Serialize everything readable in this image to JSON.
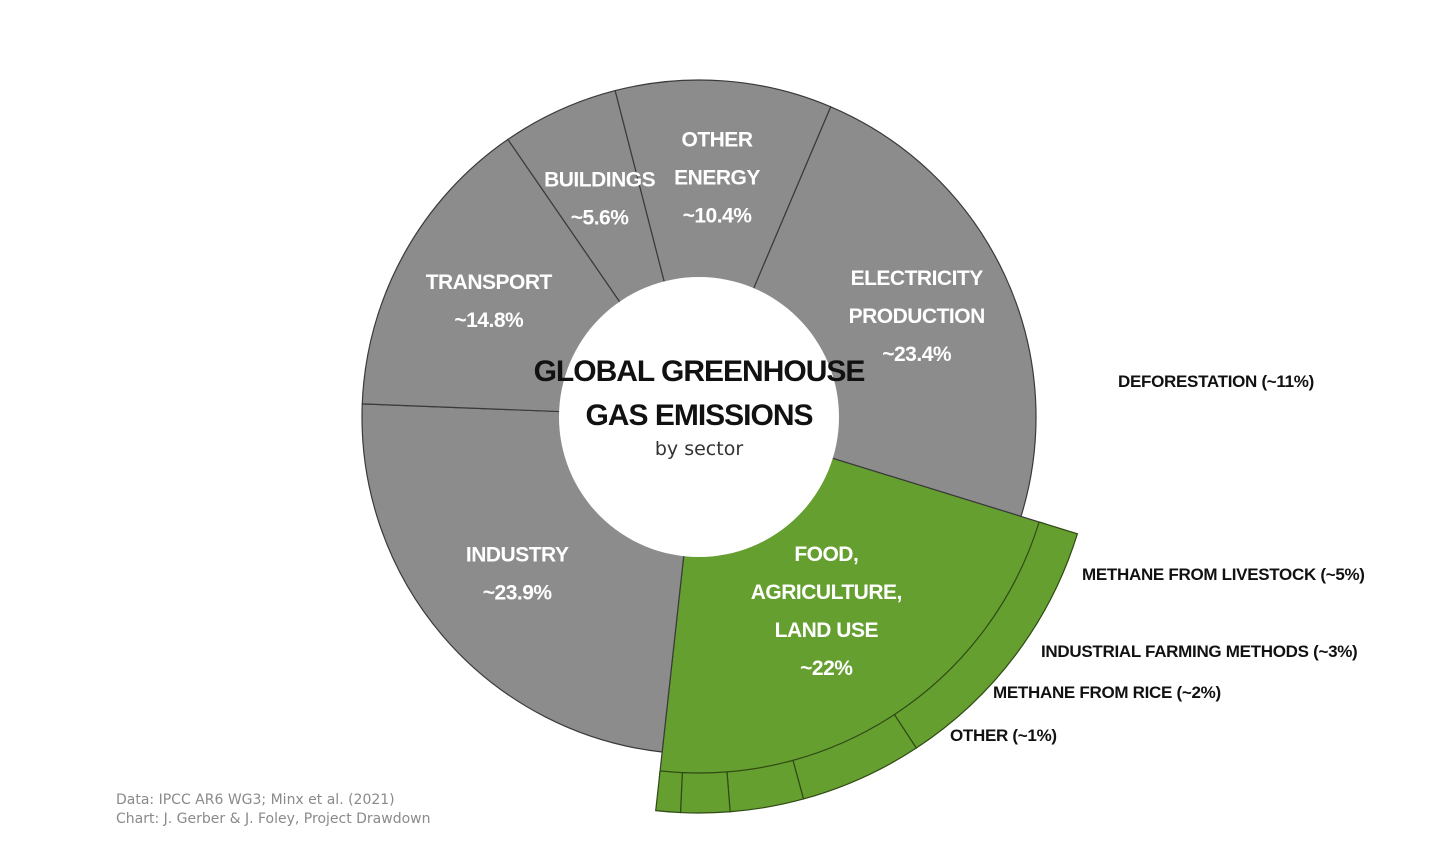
{
  "chart_data": {
    "type": "pie",
    "title": [
      "GLOBAL GREENHOUSE",
      "GAS EMISSIONS"
    ],
    "subtitle": "by sector",
    "sectors": [
      {
        "label": [
          "ELECTRICITY",
          "PRODUCTION",
          "~23.4%"
        ],
        "value": 23.4,
        "color": "#8c8c8c",
        "highlight": false
      },
      {
        "label": [
          "FOOD,",
          "AGRICULTURE,",
          "LAND USE",
          "~22%"
        ],
        "value": 22,
        "color": "#659f2f",
        "highlight": true
      },
      {
        "label": [
          "INDUSTRY",
          "~23.9%"
        ],
        "value": 23.9,
        "color": "#8c8c8c",
        "highlight": false
      },
      {
        "label": [
          "TRANSPORT",
          "~14.8%"
        ],
        "value": 14.8,
        "color": "#8c8c8c",
        "highlight": false
      },
      {
        "label": [
          "BUILDINGS",
          "~5.6%"
        ],
        "value": 5.6,
        "color": "#8c8c8c",
        "highlight": false
      },
      {
        "label": [
          "OTHER",
          "ENERGY",
          "~10.4%"
        ],
        "value": 10.4,
        "color": "#8c8c8c",
        "highlight": false
      }
    ],
    "food_breakdown": [
      {
        "label": "DEFORESTATION (~11%)",
        "value": 11
      },
      {
        "label": "METHANE FROM LIVESTOCK (~5%)",
        "value": 5
      },
      {
        "label": "INDUSTRIAL FARMING METHODS (~3%)",
        "value": 3
      },
      {
        "label": "METHANE FROM RICE (~2%)",
        "value": 2
      },
      {
        "label": "OTHER (~1%)",
        "value": 1
      }
    ]
  },
  "footer": {
    "source_line1": "Data: IPCC AR6 WG3; Minx et al. (2021)",
    "source_line2": "Chart: J. Gerber & J. Foley, Project Drawdown"
  }
}
